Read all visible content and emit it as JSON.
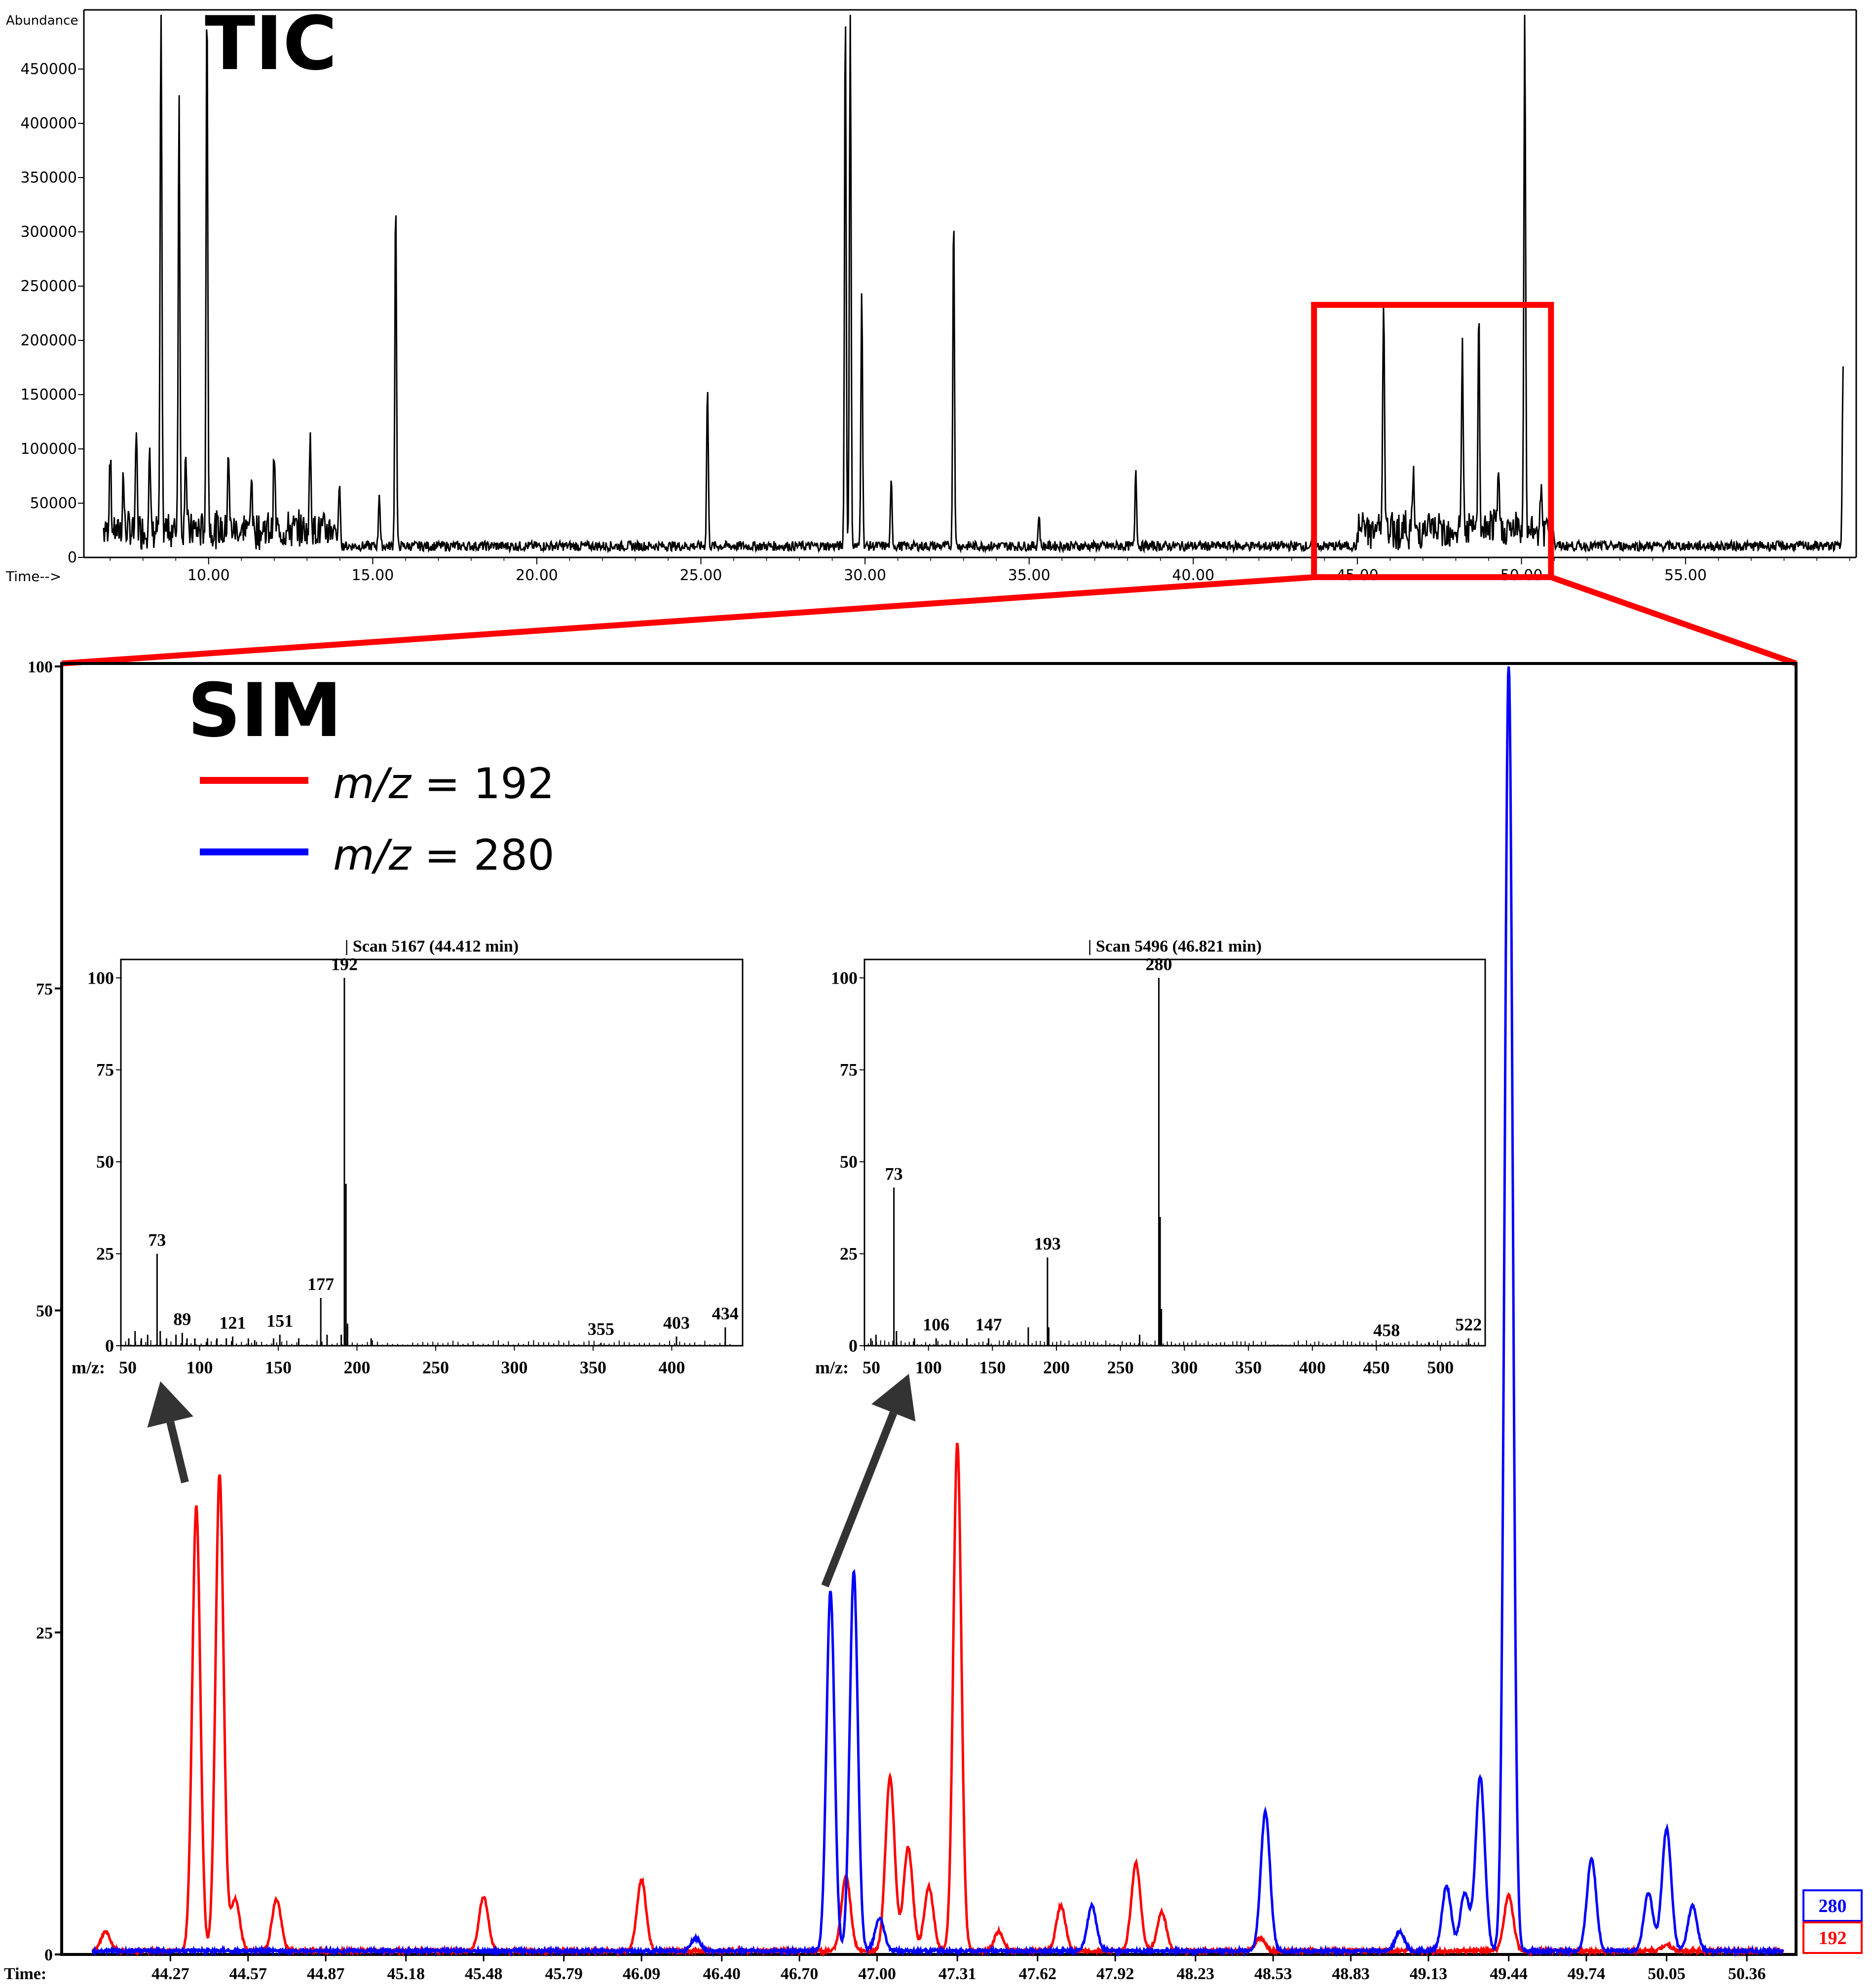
{
  "colors": {
    "red": "#ff0000",
    "blue": "#0000ff",
    "black": "#000000",
    "arrow": "#333333"
  },
  "chart_data": [
    {
      "id": "tic",
      "type": "line",
      "title": "TIC",
      "ylabel": "Abundance",
      "xlabel": "Time-->",
      "xlim": [
        6.2,
        60.2
      ],
      "ylim": [
        0,
        500000
      ],
      "x_ticks": [
        "10.00",
        "15.00",
        "20.00",
        "25.00",
        "30.00",
        "35.00",
        "40.00",
        "45.00",
        "50.00",
        "55.00"
      ],
      "y_ticks": [
        "0",
        "50000",
        "100000",
        "150000",
        "200000",
        "250000",
        "300000",
        "350000",
        "400000",
        "450000"
      ],
      "peaks": [
        {
          "x": 7.0,
          "y": 75000
        },
        {
          "x": 7.4,
          "y": 50000
        },
        {
          "x": 7.8,
          "y": 90000
        },
        {
          "x": 8.2,
          "y": 75000
        },
        {
          "x": 8.55,
          "y": 500000
        },
        {
          "x": 9.1,
          "y": 405000
        },
        {
          "x": 9.3,
          "y": 80000
        },
        {
          "x": 9.95,
          "y": 500000
        },
        {
          "x": 10.6,
          "y": 80000
        },
        {
          "x": 11.3,
          "y": 55000
        },
        {
          "x": 12.0,
          "y": 70000
        },
        {
          "x": 13.1,
          "y": 92000
        },
        {
          "x": 14.0,
          "y": 35000
        },
        {
          "x": 15.2,
          "y": 50000
        },
        {
          "x": 15.7,
          "y": 325000
        },
        {
          "x": 25.2,
          "y": 148000
        },
        {
          "x": 29.4,
          "y": 500000
        },
        {
          "x": 29.55,
          "y": 500000
        },
        {
          "x": 29.9,
          "y": 240000
        },
        {
          "x": 30.8,
          "y": 60000
        },
        {
          "x": 32.7,
          "y": 310000
        },
        {
          "x": 35.3,
          "y": 30000
        },
        {
          "x": 38.25,
          "y": 73000
        },
        {
          "x": 45.8,
          "y": 220000
        },
        {
          "x": 46.7,
          "y": 50000
        },
        {
          "x": 48.2,
          "y": 178000
        },
        {
          "x": 48.7,
          "y": 193000
        },
        {
          "x": 49.3,
          "y": 60000
        },
        {
          "x": 50.1,
          "y": 500000
        },
        {
          "x": 50.6,
          "y": 50000
        },
        {
          "x": 59.8,
          "y": 170000
        }
      ],
      "zoom_box": [
        43.8,
        50.9
      ]
    },
    {
      "id": "sim",
      "type": "line",
      "title": "SIM",
      "xlabel": "Time:",
      "xlim": [
        43.85,
        50.55
      ],
      "ylim": [
        0,
        100
      ],
      "x_ticks": [
        "44.27",
        "44.57",
        "44.87",
        "45.18",
        "45.48",
        "45.79",
        "46.09",
        "46.40",
        "46.70",
        "47.00",
        "47.31",
        "47.62",
        "47.92",
        "48.23",
        "48.53",
        "48.83",
        "49.13",
        "49.44",
        "49.74",
        "50.05",
        "50.36"
      ],
      "y_ticks": [
        "0",
        "25",
        "50",
        "75",
        "100"
      ],
      "legend": [
        {
          "prefix": "m/z",
          "text": " = 192",
          "color": "#ff0000"
        },
        {
          "prefix": "m/z",
          "text": " = 280",
          "color": "#0000ff"
        }
      ],
      "series": [
        {
          "name": "192",
          "color": "#ff0000",
          "peaks": [
            {
              "x": 44.02,
              "y": 1.5
            },
            {
              "x": 44.37,
              "y": 34.5
            },
            {
              "x": 44.46,
              "y": 37
            },
            {
              "x": 44.52,
              "y": 4
            },
            {
              "x": 44.68,
              "y": 4
            },
            {
              "x": 45.48,
              "y": 4.2
            },
            {
              "x": 46.09,
              "y": 5.5
            },
            {
              "x": 46.88,
              "y": 5.8
            },
            {
              "x": 47.05,
              "y": 13.5
            },
            {
              "x": 47.12,
              "y": 8
            },
            {
              "x": 47.2,
              "y": 5
            },
            {
              "x": 47.31,
              "y": 39.5
            },
            {
              "x": 47.47,
              "y": 1.5
            },
            {
              "x": 47.71,
              "y": 3.5
            },
            {
              "x": 48.0,
              "y": 6.8
            },
            {
              "x": 48.1,
              "y": 3
            },
            {
              "x": 48.48,
              "y": 1
            },
            {
              "x": 49.44,
              "y": 4.3
            },
            {
              "x": 50.05,
              "y": 0.5
            }
          ]
        },
        {
          "name": "280",
          "color": "#0000ff",
          "peaks": [
            {
              "x": 46.3,
              "y": 1
            },
            {
              "x": 46.82,
              "y": 28
            },
            {
              "x": 46.91,
              "y": 29.5
            },
            {
              "x": 47.01,
              "y": 2.5
            },
            {
              "x": 47.83,
              "y": 3.5
            },
            {
              "x": 48.5,
              "y": 10.8
            },
            {
              "x": 49.02,
              "y": 1.5
            },
            {
              "x": 49.2,
              "y": 5
            },
            {
              "x": 49.27,
              "y": 4.5
            },
            {
              "x": 49.33,
              "y": 13.5
            },
            {
              "x": 49.44,
              "y": 100
            },
            {
              "x": 49.76,
              "y": 7.2
            },
            {
              "x": 49.98,
              "y": 4.5
            },
            {
              "x": 50.05,
              "y": 9.5
            },
            {
              "x": 50.15,
              "y": 3.5
            }
          ]
        }
      ],
      "trace_labels": [
        "280",
        "192"
      ]
    },
    {
      "id": "spectrum-1",
      "type": "bar",
      "title": "| Scan 5167 (44.412 min)",
      "xlabel": "m/z:",
      "xlim": [
        50,
        445
      ],
      "ylim": [
        0,
        105
      ],
      "x_ticks": [
        "50",
        "100",
        "150",
        "200",
        "250",
        "300",
        "350",
        "400"
      ],
      "y_ticks": [
        "0",
        "25",
        "50",
        "75",
        "100"
      ],
      "peaks": [
        {
          "mz": 55,
          "i": 2
        },
        {
          "mz": 59,
          "i": 4
        },
        {
          "mz": 63,
          "i": 2
        },
        {
          "mz": 67,
          "i": 3
        },
        {
          "mz": 73,
          "i": 25,
          "label": "73"
        },
        {
          "mz": 75,
          "i": 4
        },
        {
          "mz": 79,
          "i": 2
        },
        {
          "mz": 85,
          "i": 3
        },
        {
          "mz": 89,
          "i": 3.5,
          "label": "89"
        },
        {
          "mz": 92,
          "i": 2
        },
        {
          "mz": 97,
          "i": 2
        },
        {
          "mz": 105,
          "i": 2
        },
        {
          "mz": 111,
          "i": 2
        },
        {
          "mz": 117,
          "i": 2
        },
        {
          "mz": 121,
          "i": 2.5,
          "label": "121"
        },
        {
          "mz": 131,
          "i": 2
        },
        {
          "mz": 135,
          "i": 1.5
        },
        {
          "mz": 147,
          "i": 2
        },
        {
          "mz": 151,
          "i": 3,
          "label": "151"
        },
        {
          "mz": 163,
          "i": 2
        },
        {
          "mz": 177,
          "i": 13,
          "label": "177"
        },
        {
          "mz": 181,
          "i": 3
        },
        {
          "mz": 190,
          "i": 3
        },
        {
          "mz": 192,
          "i": 100,
          "label": "192"
        },
        {
          "mz": 193,
          "i": 44
        },
        {
          "mz": 194,
          "i": 6
        },
        {
          "mz": 209,
          "i": 2
        },
        {
          "mz": 355,
          "i": 0.8,
          "label": "355"
        },
        {
          "mz": 403,
          "i": 2.5,
          "label": "403"
        },
        {
          "mz": 434,
          "i": 5,
          "label": "434"
        }
      ]
    },
    {
      "id": "spectrum-2",
      "type": "bar",
      "title": "| Scan 5496 (46.821 min)",
      "xlabel": "m/z:",
      "xlim": [
        50,
        535
      ],
      "ylim": [
        0,
        105
      ],
      "x_ticks": [
        "50",
        "100",
        "150",
        "200",
        "250",
        "300",
        "350",
        "400",
        "450",
        "500"
      ],
      "y_ticks": [
        "0",
        "25",
        "50",
        "75",
        "100"
      ],
      "peaks": [
        {
          "mz": 55,
          "i": 2
        },
        {
          "mz": 59,
          "i": 3
        },
        {
          "mz": 73,
          "i": 43,
          "label": "73"
        },
        {
          "mz": 75,
          "i": 4
        },
        {
          "mz": 89,
          "i": 2
        },
        {
          "mz": 106,
          "i": 2,
          "label": "106"
        },
        {
          "mz": 117,
          "i": 1.5
        },
        {
          "mz": 130,
          "i": 2
        },
        {
          "mz": 147,
          "i": 2,
          "label": "147"
        },
        {
          "mz": 163,
          "i": 1.5
        },
        {
          "mz": 178,
          "i": 5
        },
        {
          "mz": 193,
          "i": 24,
          "label": "193"
        },
        {
          "mz": 194,
          "i": 5
        },
        {
          "mz": 265,
          "i": 3
        },
        {
          "mz": 280,
          "i": 100,
          "label": "280"
        },
        {
          "mz": 281,
          "i": 35
        },
        {
          "mz": 282,
          "i": 10
        },
        {
          "mz": 458,
          "i": 0.5,
          "label": "458"
        },
        {
          "mz": 491,
          "i": 1
        },
        {
          "mz": 522,
          "i": 2,
          "label": "522"
        }
      ]
    }
  ]
}
